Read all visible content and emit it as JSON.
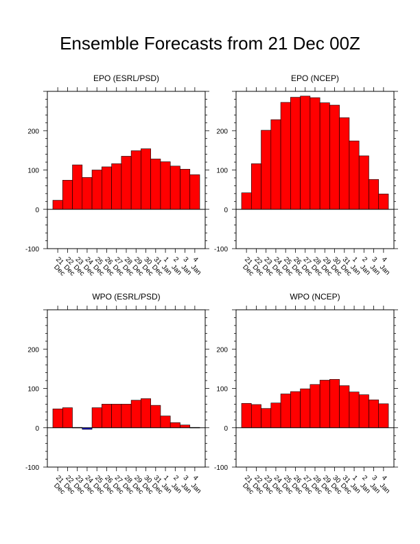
{
  "title": "Ensemble Forecasts from 21 Dec 00Z",
  "colors": {
    "positive": "#ff0000",
    "negative": "#0000cc",
    "axis": "#000000"
  },
  "chart_data": [
    {
      "type": "bar",
      "title": "EPO (ESRL/PSD)",
      "categories": [
        "21 Dec",
        "22 Dec",
        "23 Dec",
        "24 Dec",
        "25 Dec",
        "26 Dec",
        "27 Dec",
        "28 Dec",
        "29 Dec",
        "30 Dec",
        "31 Dec",
        "1 Jan",
        "2 Jan",
        "3 Jan",
        "4 Jan"
      ],
      "values": [
        23,
        74,
        113,
        81,
        100,
        108,
        116,
        135,
        149,
        154,
        128,
        121,
        110,
        102,
        88
      ],
      "ylim": [
        -100,
        300
      ],
      "yticks": [
        -100,
        0,
        100,
        200
      ]
    },
    {
      "type": "bar",
      "title": "EPO (NCEP)",
      "categories": [
        "21 Dec",
        "22 Dec",
        "23 Dec",
        "24 Dec",
        "25 Dec",
        "26 Dec",
        "27 Dec",
        "28 Dec",
        "29 Dec",
        "30 Dec",
        "31 Dec",
        "1 Jan",
        "2 Jan",
        "3 Jan",
        "4 Jan"
      ],
      "values": [
        42,
        116,
        201,
        228,
        272,
        285,
        288,
        284,
        271,
        265,
        233,
        174,
        136,
        76,
        39
      ],
      "ylim": [
        -100,
        300
      ],
      "yticks": [
        -100,
        0,
        100,
        200
      ]
    },
    {
      "type": "bar",
      "title": "WPO (ESRL/PSD)",
      "categories": [
        "21 Dec",
        "22 Dec",
        "23 Dec",
        "24 Dec",
        "25 Dec",
        "26 Dec",
        "27 Dec",
        "28 Dec",
        "29 Dec",
        "30 Dec",
        "31 Dec",
        "1 Jan",
        "2 Jan",
        "3 Jan",
        "4 Jan"
      ],
      "values": [
        48,
        51,
        1,
        -4,
        51,
        60,
        60,
        60,
        70,
        74,
        57,
        30,
        13,
        7,
        1
      ],
      "ylim": [
        -100,
        300
      ],
      "yticks": [
        -100,
        0,
        100,
        200
      ]
    },
    {
      "type": "bar",
      "title": "WPO (NCEP)",
      "categories": [
        "21 Dec",
        "22 Dec",
        "23 Dec",
        "24 Dec",
        "25 Dec",
        "26 Dec",
        "27 Dec",
        "28 Dec",
        "29 Dec",
        "30 Dec",
        "31 Dec",
        "1 Jan",
        "2 Jan",
        "3 Jan",
        "4 Jan"
      ],
      "values": [
        62,
        59,
        49,
        63,
        86,
        92,
        99,
        110,
        121,
        123,
        107,
        91,
        84,
        71,
        61
      ],
      "ylim": [
        -100,
        300
      ],
      "yticks": [
        -100,
        0,
        100,
        200
      ]
    }
  ]
}
